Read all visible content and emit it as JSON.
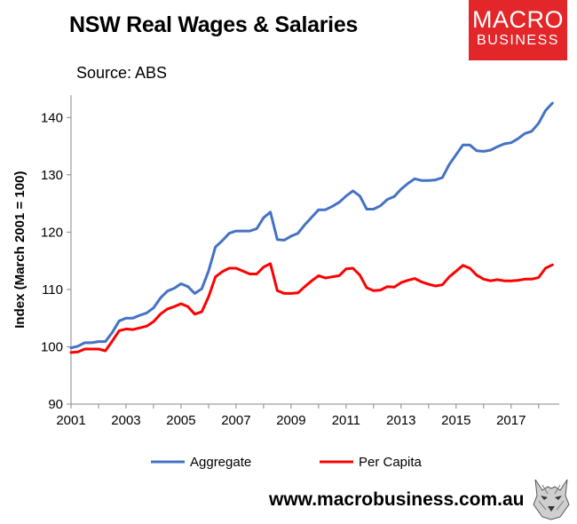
{
  "header": {
    "title": "NSW Real Wages & Salaries",
    "source": "Source: ABS"
  },
  "logo": {
    "line1": "MACRO",
    "line2": "BUSINESS"
  },
  "footer": {
    "url": "www.macrobusiness.com.au"
  },
  "colors": {
    "aggregate": "#4472c4",
    "per_capita": "#ff0000",
    "logo_bg": "#e3262a"
  },
  "chart_data": {
    "type": "line",
    "title": "NSW Real Wages & Salaries",
    "ylabel": "Index (March 2001 = 100)",
    "xlabel": "",
    "xlim": [
      2001,
      2018.75
    ],
    "ylim": [
      90,
      145
    ],
    "xticks": [
      2001,
      2003,
      2005,
      2007,
      2009,
      2011,
      2013,
      2015,
      2017
    ],
    "yticks": [
      90,
      100,
      110,
      120,
      130,
      140
    ],
    "grid": false,
    "legend": "bottom",
    "x": [
      2001.0,
      2001.25,
      2001.5,
      2001.75,
      2002.0,
      2002.25,
      2002.5,
      2002.75,
      2003.0,
      2003.25,
      2003.5,
      2003.75,
      2004.0,
      2004.25,
      2004.5,
      2004.75,
      2005.0,
      2005.25,
      2005.5,
      2005.75,
      2006.0,
      2006.25,
      2006.5,
      2006.75,
      2007.0,
      2007.25,
      2007.5,
      2007.75,
      2008.0,
      2008.25,
      2008.5,
      2008.75,
      2009.0,
      2009.25,
      2009.5,
      2009.75,
      2010.0,
      2010.25,
      2010.5,
      2010.75,
      2011.0,
      2011.25,
      2011.5,
      2011.75,
      2012.0,
      2012.25,
      2012.5,
      2012.75,
      2013.0,
      2013.25,
      2013.5,
      2013.75,
      2014.0,
      2014.25,
      2014.5,
      2014.75,
      2015.0,
      2015.25,
      2015.5,
      2015.75,
      2016.0,
      2016.25,
      2016.5,
      2016.75,
      2017.0,
      2017.25,
      2017.5,
      2017.75,
      2018.0,
      2018.25,
      2018.5
    ],
    "series": [
      {
        "name": "Aggregate",
        "values": [
          99.8,
          100.1,
          100.7,
          100.7,
          100.9,
          100.9,
          102.5,
          104.5,
          105.0,
          105.0,
          105.5,
          105.9,
          106.8,
          108.5,
          109.7,
          110.2,
          111.0,
          110.5,
          109.3,
          110.1,
          113.2,
          117.4,
          118.5,
          119.8,
          120.2,
          120.2,
          120.2,
          120.6,
          122.5,
          123.5,
          118.7,
          118.6,
          119.3,
          119.8,
          121.3,
          122.6,
          123.9,
          123.9,
          124.5,
          125.2,
          126.3,
          127.2,
          126.3,
          124.0,
          124.0,
          124.6,
          125.7,
          126.2,
          127.5,
          128.5,
          129.3,
          129.0,
          129.0,
          129.1,
          129.5,
          131.8,
          133.5,
          135.2,
          135.2,
          134.2,
          134.1,
          134.3,
          134.9,
          135.4,
          135.6,
          136.3,
          137.2,
          137.6,
          139.0,
          141.2,
          142.5
        ]
      },
      {
        "name": "Per Capita",
        "values": [
          99.0,
          99.1,
          99.6,
          99.6,
          99.6,
          99.3,
          101.0,
          102.8,
          103.1,
          103.0,
          103.3,
          103.6,
          104.4,
          105.7,
          106.6,
          107.0,
          107.5,
          107.0,
          105.7,
          106.1,
          108.7,
          112.2,
          113.1,
          113.7,
          113.7,
          113.2,
          112.7,
          112.7,
          113.9,
          114.5,
          109.8,
          109.3,
          109.3,
          109.4,
          110.5,
          111.5,
          112.4,
          112.0,
          112.2,
          112.4,
          113.6,
          113.7,
          112.5,
          110.3,
          109.8,
          109.9,
          110.5,
          110.4,
          111.2,
          111.6,
          111.9,
          111.3,
          110.9,
          110.6,
          110.8,
          112.2,
          113.2,
          114.2,
          113.7,
          112.5,
          111.8,
          111.5,
          111.7,
          111.5,
          111.5,
          111.6,
          111.8,
          111.8,
          112.1,
          113.7,
          114.3
        ]
      }
    ]
  }
}
